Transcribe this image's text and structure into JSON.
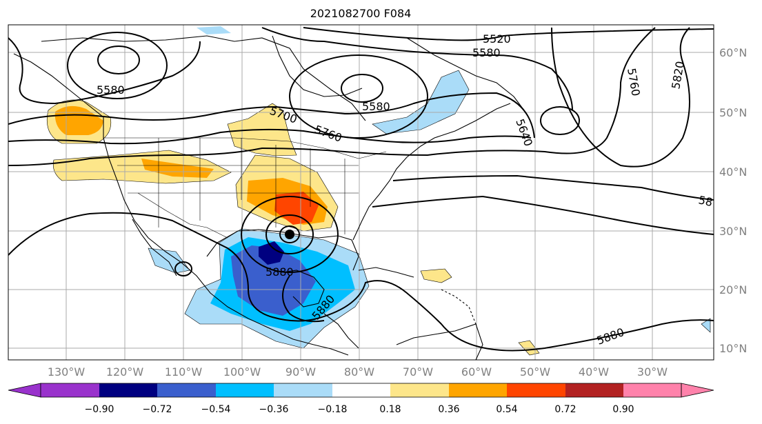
{
  "title": "2021082700 F084",
  "lon_ticks": [
    "130°W",
    "120°W",
    "110°W",
    "100°W",
    "90°W",
    "80°W",
    "70°W",
    "60°W",
    "50°W",
    "40°W",
    "30°W"
  ],
  "lat_ticks": [
    "60°N",
    "50°N",
    "40°N",
    "30°N",
    "20°N",
    "10°N"
  ],
  "contour_labels": [
    "5520",
    "5580",
    "5580",
    "5580",
    "5700",
    "5760",
    "5640",
    "5760",
    "5820",
    "5880",
    "5880",
    "5880",
    "58"
  ],
  "colorbar": {
    "ticks": [
      "−0.90",
      "−0.72",
      "−0.54",
      "−0.36",
      "−0.18",
      "0.18",
      "0.36",
      "0.54",
      "0.72",
      "0.90"
    ],
    "colors": [
      "#9932cc",
      "#000080",
      "#3a5fcd",
      "#00bfff",
      "#aadcf8",
      "#ffffff",
      "#fde68a",
      "#ffa500",
      "#ff4500",
      "#b22222",
      "#ff82ab"
    ]
  },
  "colors": {
    "contour": "#000000",
    "grid": "#a9a9a9",
    "coast": "#000000"
  }
}
